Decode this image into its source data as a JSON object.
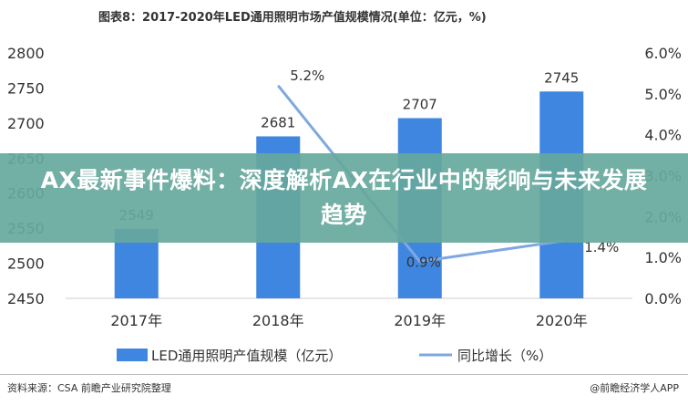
{
  "title": "图表8：2017-2020年LED通用照明市场产值规模情况(单位：亿元，%)",
  "banner": "AX最新事件爆料：深度解析AX在行业中的影响与未来发展趋势",
  "source": "资料来源：CSA 前瞻产业研究院整理",
  "brand": "@前瞻经济学人APP",
  "colors": {
    "bar": "#3f86e0",
    "line": "#7fa8e0"
  },
  "chart_data": {
    "type": "bar",
    "categories": [
      "2017年",
      "2018年",
      "2019年",
      "2020年"
    ],
    "series": [
      {
        "name": "LED通用照明产值规模（亿元）",
        "type": "bar",
        "axis": "left",
        "values": [
          2549,
          2681,
          2707,
          2745
        ],
        "labels": [
          "2549",
          "2681",
          "2707",
          "2745"
        ]
      },
      {
        "name": "同比增长（%）",
        "type": "line",
        "axis": "right",
        "values": [
          null,
          5.2,
          0.9,
          1.4
        ],
        "labels": [
          "",
          "5.2%",
          "0.9%",
          "1.4%"
        ]
      }
    ],
    "y_left": {
      "min": 2450,
      "max": 2800,
      "ticks": [
        "2450",
        "2500",
        "2550",
        "2600",
        "2650",
        "2700",
        "2750",
        "2800"
      ]
    },
    "y_right": {
      "min": 0,
      "max": 6,
      "ticks": [
        "0.0%",
        "1.0%",
        "2.0%",
        "3.0%",
        "4.0%",
        "5.0%",
        "6.0%"
      ]
    },
    "legend_position": "bottom",
    "grid": false
  }
}
